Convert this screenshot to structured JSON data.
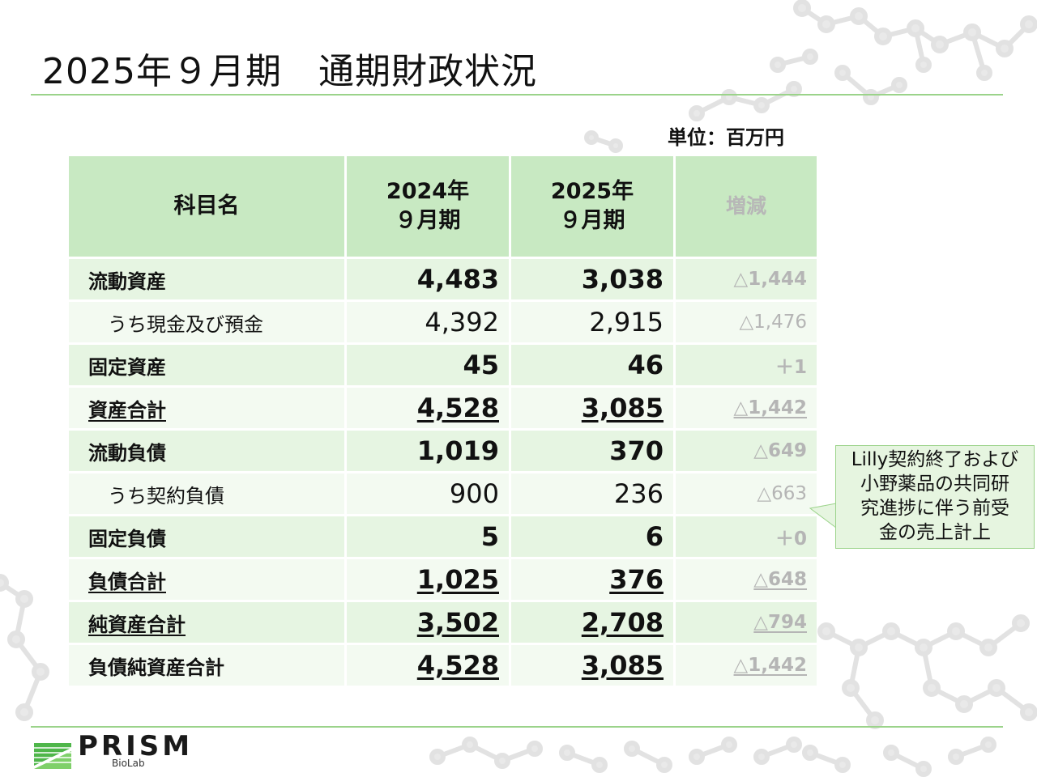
{
  "title": "2025年９月期　通期財政状況",
  "unit_label": "単位：百万円",
  "table": {
    "headers": {
      "name": "科目名",
      "fy2024": [
        "2024年",
        "９月期"
      ],
      "fy2025": [
        "2025年",
        "９月期"
      ],
      "change": "増減"
    },
    "rows": [
      {
        "name": "流動資産",
        "fy2024": "4,483",
        "fy2025": "3,038",
        "change": "△1,444"
      },
      {
        "name": "うち現金及び預金",
        "fy2024": "4,392",
        "fy2025": "2,915",
        "change": "△1,476"
      },
      {
        "name": "固定資産",
        "fy2024": "45",
        "fy2025": "46",
        "change": "＋1"
      },
      {
        "name": "資産合計",
        "fy2024": "4,528",
        "fy2025": "3,085",
        "change": "△1,442"
      },
      {
        "name": "流動負債",
        "fy2024": "1,019",
        "fy2025": "370",
        "change": "△649"
      },
      {
        "name": "うち契約負債",
        "fy2024": "900",
        "fy2025": "236",
        "change": "△663"
      },
      {
        "name": "固定負債",
        "fy2024": "5",
        "fy2025": "6",
        "change": "＋0"
      },
      {
        "name": "負債合計",
        "fy2024": "1,025",
        "fy2025": "376",
        "change": "△648"
      },
      {
        "name": "純資産合計",
        "fy2024": "3,502",
        "fy2025": "2,708",
        "change": "△794"
      },
      {
        "name": "負債純資産合計",
        "fy2024": "4,528",
        "fy2025": "3,085",
        "change": "△1,442"
      }
    ]
  },
  "callout": [
    "Lilly契約終了および",
    "小野薬品の共同研",
    "究進捗に伴う前受",
    "金の売上計上"
  ],
  "logo": {
    "word": "PRISM",
    "sub": "BioLab"
  },
  "colors": {
    "accent_green": "#9bd38a",
    "header_bg": "#c8e9c2",
    "row_bg_dark": "#e6f5e2",
    "row_bg_light": "#f3faf1"
  }
}
